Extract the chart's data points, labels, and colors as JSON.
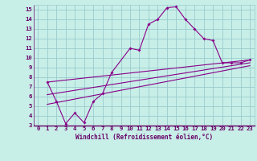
{
  "bg_color": "#c8eee8",
  "line_color": "#880088",
  "grid_color": "#99cccc",
  "axis_color": "#660066",
  "xlim": [
    -0.5,
    23.5
  ],
  "ylim": [
    3,
    15.5
  ],
  "xticks": [
    0,
    1,
    2,
    3,
    4,
    5,
    6,
    7,
    8,
    9,
    10,
    11,
    12,
    13,
    14,
    15,
    16,
    17,
    18,
    19,
    20,
    21,
    22,
    23
  ],
  "yticks": [
    3,
    4,
    5,
    6,
    7,
    8,
    9,
    10,
    11,
    12,
    13,
    14,
    15
  ],
  "xlabel": "Windchill (Refroidissement éolien,°C)",
  "main_series": [
    [
      1,
      7.5
    ],
    [
      2,
      5.5
    ],
    [
      3,
      3.2
    ],
    [
      4,
      4.3
    ],
    [
      5,
      3.3
    ],
    [
      6,
      5.5
    ],
    [
      7,
      6.3
    ],
    [
      8,
      8.5
    ],
    [
      10,
      11.0
    ],
    [
      11,
      10.8
    ],
    [
      12,
      13.5
    ],
    [
      13,
      14.0
    ],
    [
      14,
      15.2
    ],
    [
      15,
      15.3
    ],
    [
      16,
      14.0
    ],
    [
      17,
      13.0
    ],
    [
      18,
      12.0
    ],
    [
      19,
      11.8
    ],
    [
      20,
      9.5
    ],
    [
      21,
      9.5
    ],
    [
      22,
      9.5
    ],
    [
      23,
      9.8
    ]
  ],
  "trend_lines": [
    [
      [
        1,
        7.5
      ],
      [
        23,
        9.8
      ]
    ],
    [
      [
        1,
        6.2
      ],
      [
        23,
        9.5
      ]
    ],
    [
      [
        1,
        5.2
      ],
      [
        23,
        9.2
      ]
    ]
  ]
}
